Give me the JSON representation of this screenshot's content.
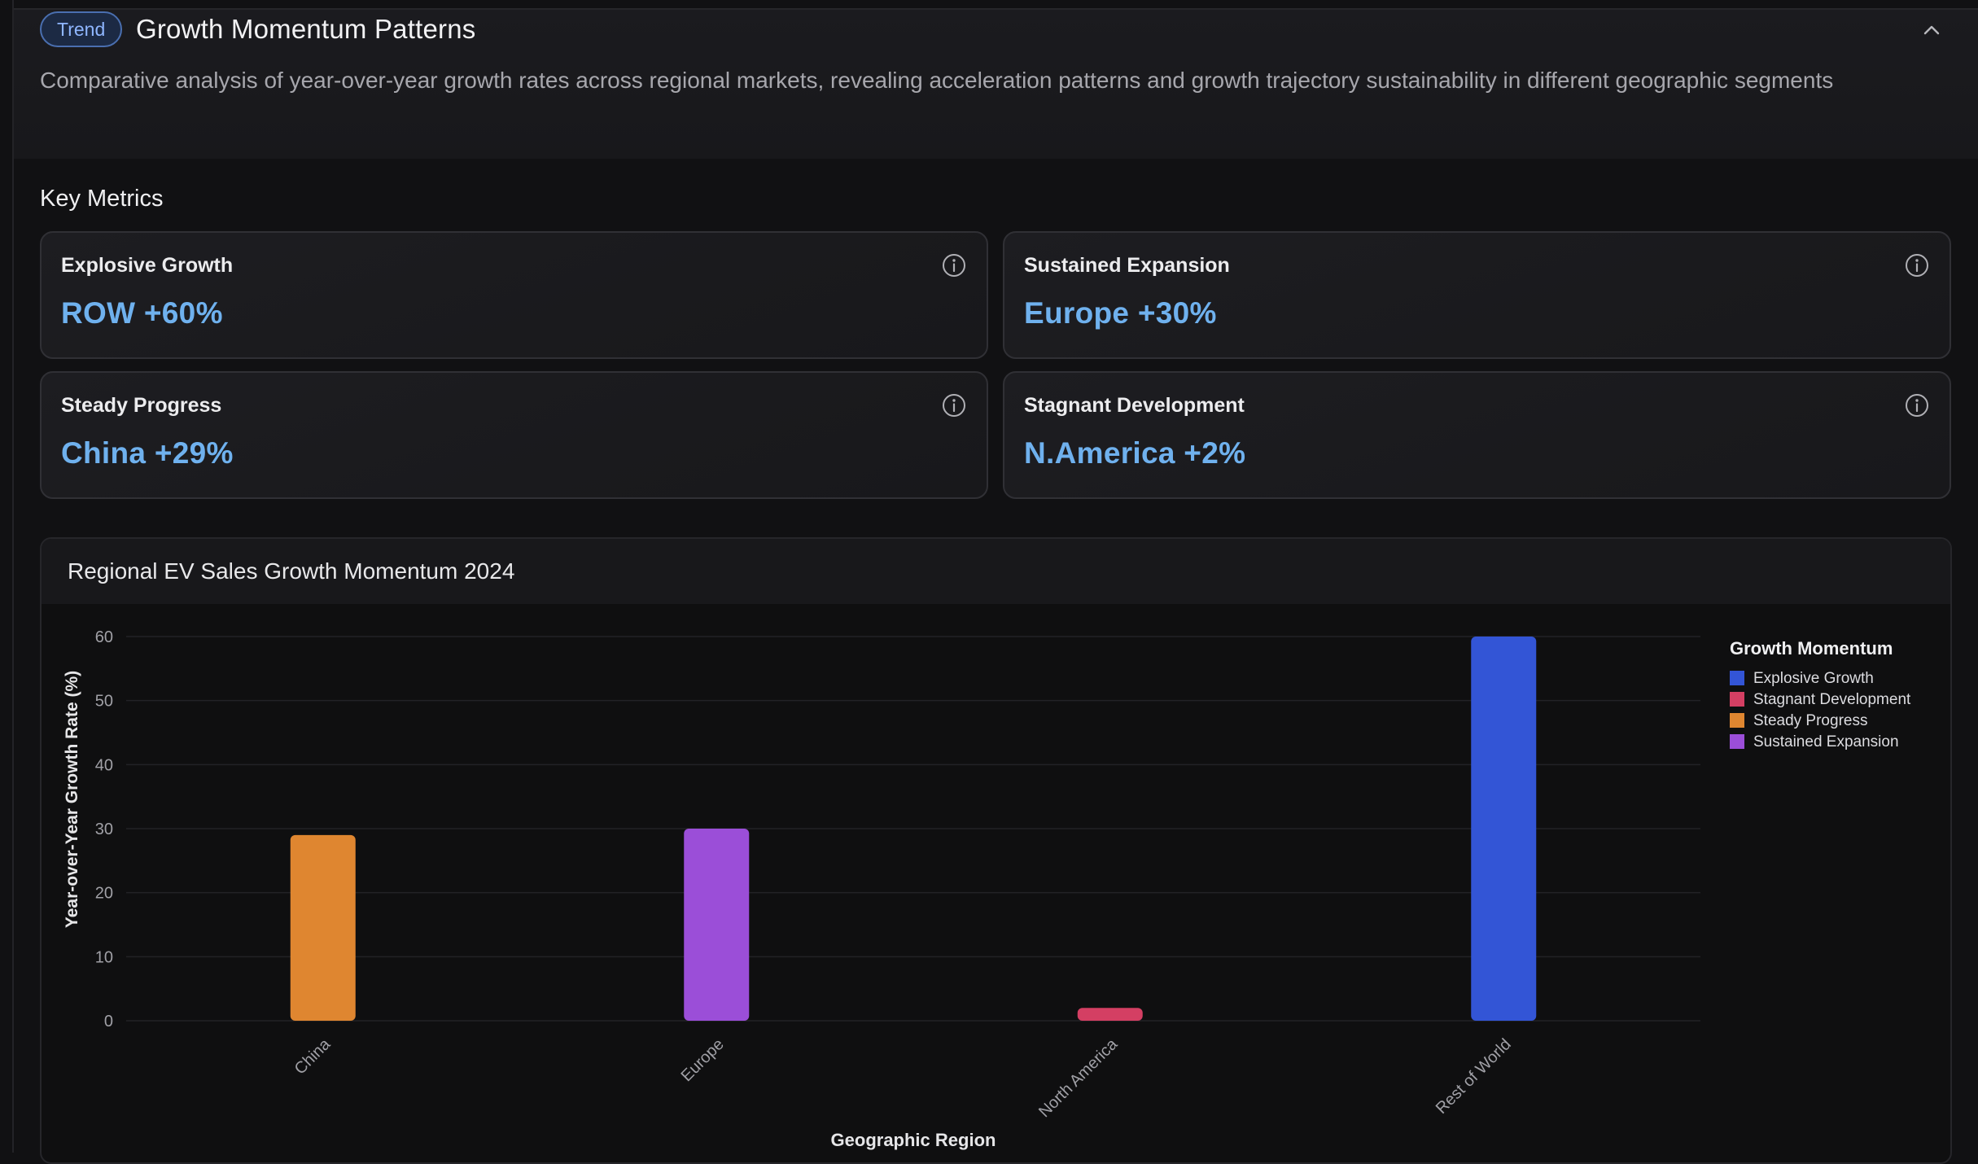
{
  "header": {
    "badge": "Trend",
    "title": "Growth Momentum Patterns",
    "description": "Comparative analysis of year-over-year growth rates across regional markets, revealing acceleration patterns and growth trajectory sustainability in different geographic segments",
    "collapse_icon": "chevron-up-icon"
  },
  "metrics": {
    "title": "Key Metrics",
    "cards": [
      {
        "label": "Explosive Growth",
        "value": "ROW +60%",
        "icon": "info-icon"
      },
      {
        "label": "Sustained Expansion",
        "value": "Europe +30%",
        "icon": "info-icon"
      },
      {
        "label": "Steady Progress",
        "value": "China +29%",
        "icon": "info-icon"
      },
      {
        "label": "Stagnant Development",
        "value": "N.America +2%",
        "icon": "info-icon"
      }
    ]
  },
  "colors": {
    "value_text": "#6fb1ee",
    "badge_border": "#4a6fb0"
  },
  "chart_data": {
    "type": "bar",
    "title": "Regional EV Sales Growth Momentum 2024",
    "xlabel": "Geographic Region",
    "ylabel": "Year-over-Year Growth Rate (%)",
    "ylim": [
      0,
      60
    ],
    "yticks": [
      0,
      10,
      20,
      30,
      40,
      50,
      60
    ],
    "grid": true,
    "categories": [
      "China",
      "Europe",
      "North America",
      "Rest of World"
    ],
    "values": [
      29,
      30,
      2,
      60
    ],
    "bar_groups": [
      "Steady Progress",
      "Sustained Expansion",
      "Stagnant Development",
      "Explosive Growth"
    ],
    "legend": {
      "title": "Growth Momentum",
      "placement": "right",
      "items": [
        {
          "name": "Explosive Growth",
          "color": "#3355d6"
        },
        {
          "name": "Stagnant Development",
          "color": "#d43f63"
        },
        {
          "name": "Steady Progress",
          "color": "#df8630"
        },
        {
          "name": "Sustained Expansion",
          "color": "#9b4ed8"
        }
      ]
    }
  }
}
